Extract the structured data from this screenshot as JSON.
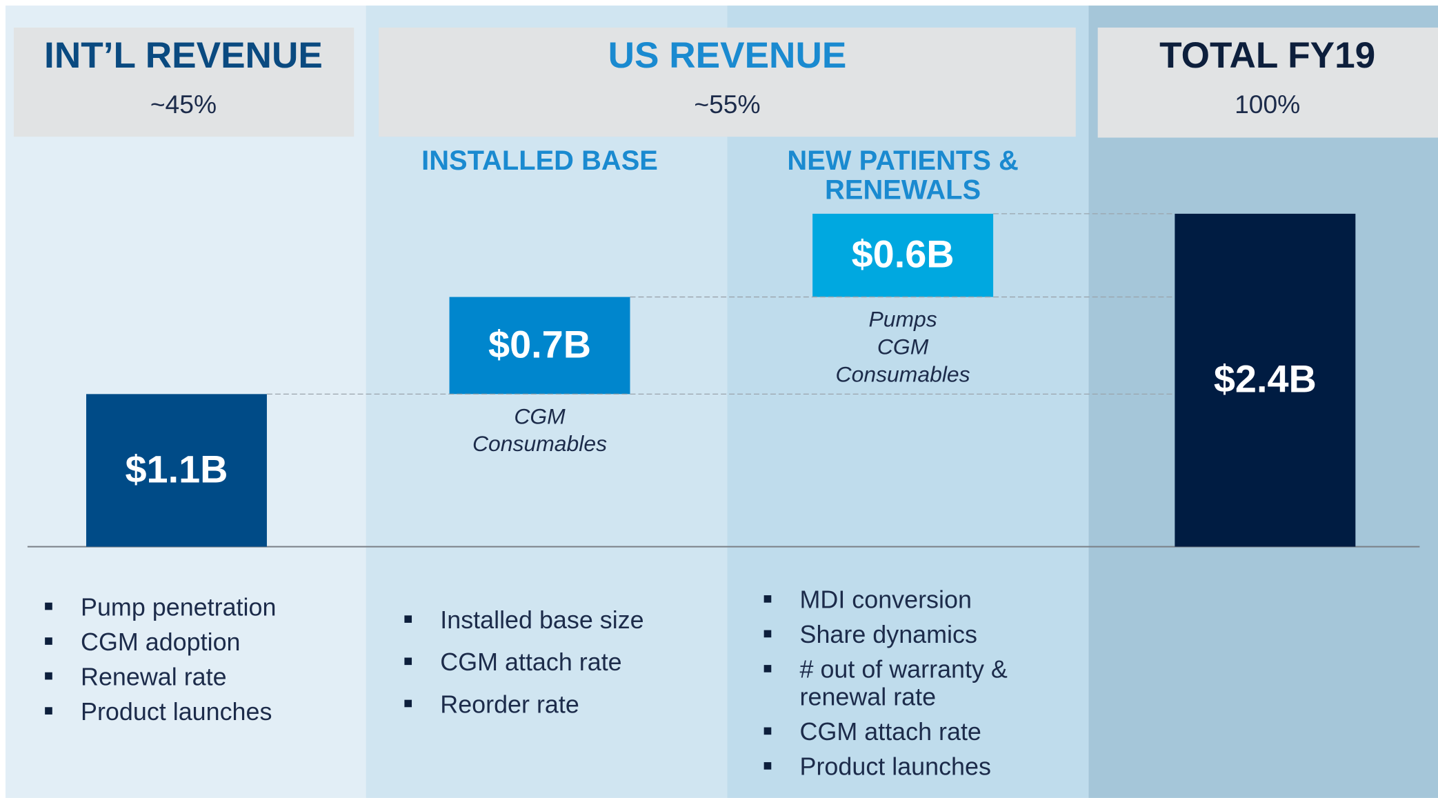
{
  "chart_data": {
    "type": "waterfall",
    "headers": [
      {
        "title": "INT’L REVENUE",
        "subtitle": "~45%",
        "color": "#0a4a80"
      },
      {
        "title": "US REVENUE",
        "subtitle": "~55%",
        "color": "#1a8ad0"
      },
      {
        "title": "TOTAL FY19",
        "subtitle": "100%",
        "color": "#0d1f3c"
      }
    ],
    "categories": [
      null,
      "INSTALLED BASE",
      "NEW PATIENTS & RENEWALS",
      null
    ],
    "values": [
      1.1,
      0.7,
      0.6,
      2.4
    ],
    "value_labels": [
      "$1.1B",
      "$0.7B",
      "$0.6B",
      "$2.4B"
    ],
    "is_total": [
      false,
      false,
      false,
      true
    ],
    "colors": [
      "#004b87",
      "#0086cd",
      "#00a8e0",
      "#001c42"
    ],
    "bar_notes": [
      null,
      [
        "CGM",
        "Consumables"
      ],
      [
        "Pumps",
        "CGM",
        "Consumables"
      ],
      null
    ],
    "drivers": [
      [
        "Pump penetration",
        "CGM adoption",
        "Renewal rate",
        "Product launches"
      ],
      [
        "Installed base size",
        "CGM attach rate",
        "Reorder rate"
      ],
      [
        "MDI conversion",
        "Share dynamics",
        "# out of warranty & renewal rate",
        "CGM attach rate",
        "Product launches"
      ]
    ]
  }
}
